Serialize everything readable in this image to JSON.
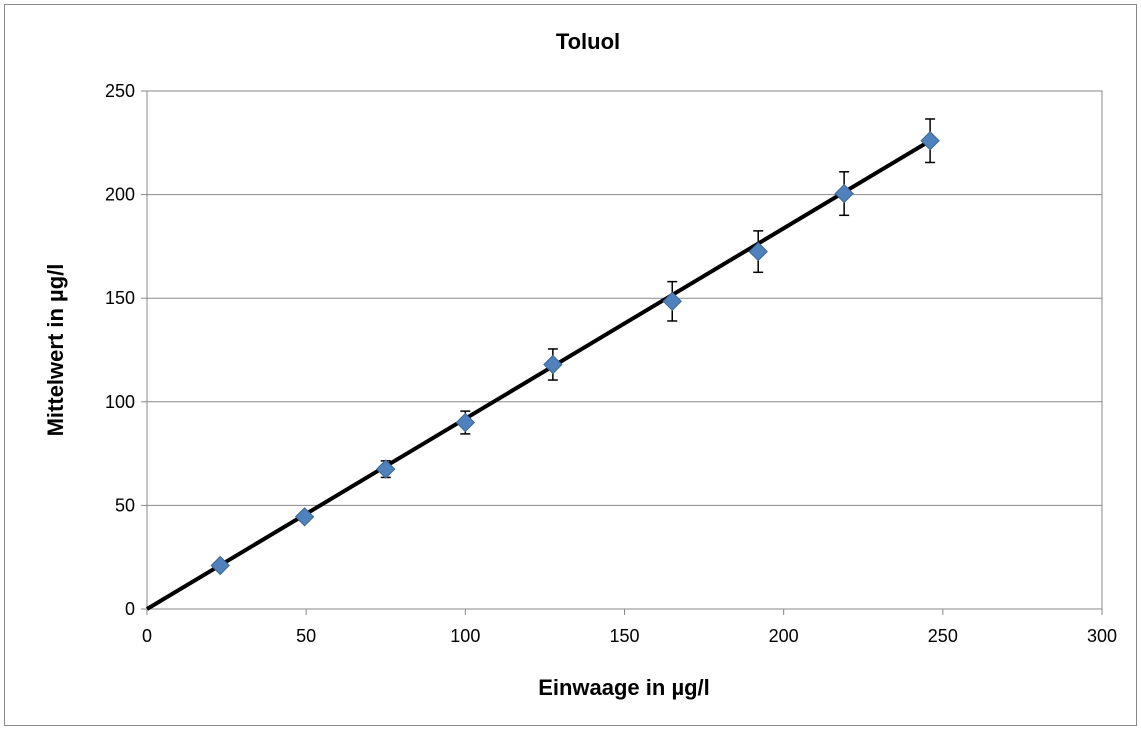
{
  "chart_data": {
    "type": "scatter",
    "title": "Toluol",
    "xlabel": "Einwaage in µg/l",
    "ylabel": "Mittelwert in µg/l",
    "xlim": [
      0,
      300
    ],
    "ylim": [
      0,
      250
    ],
    "xticks": [
      "0",
      "50",
      "100",
      "150",
      "200",
      "250",
      "300"
    ],
    "yticks": [
      "0",
      "50",
      "100",
      "150",
      "200",
      "250"
    ],
    "grid": "horizontal",
    "legend": "none",
    "series": [
      {
        "marker": "diamond",
        "color": "#4F81BD",
        "x": [
          23,
          49.5,
          75,
          100,
          127.5,
          165,
          192,
          219,
          246
        ],
        "y": [
          21,
          44.5,
          67.5,
          90,
          118,
          148.5,
          172.5,
          200.5,
          226
        ],
        "error": [
          1.5,
          2,
          4,
          5.5,
          7.5,
          9.5,
          10,
          10.5,
          10.5
        ]
      }
    ],
    "trendline": {
      "color": "#000000",
      "x": [
        0,
        246
      ],
      "y": [
        0,
        226
      ]
    }
  }
}
